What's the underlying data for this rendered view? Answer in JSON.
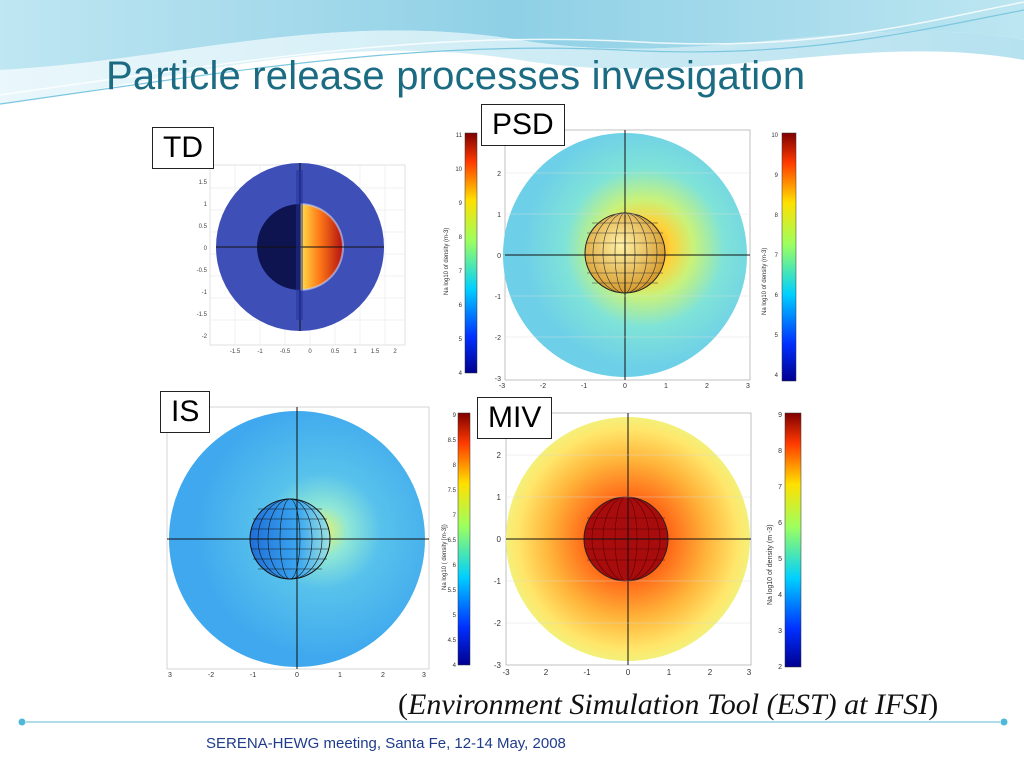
{
  "slide": {
    "title": "Particle release processes invesigation",
    "caption_open": "(",
    "caption_text": "Environment Simulation Tool (EST) at IFSI",
    "caption_close": ")",
    "footer": "SERENA-HEWG meeting, Santa Fe, 12-14 May, 2008"
  },
  "panels": {
    "td": {
      "label": "TD",
      "y_ticks": [
        "1.5",
        "1",
        "0.5",
        "0",
        "-0.5",
        "-1",
        "-1.5",
        "-2"
      ],
      "x_ticks": [
        "-1.5",
        "-1",
        "-0.5",
        "0",
        "0.5",
        "1",
        "1.5",
        "2"
      ]
    },
    "psd": {
      "label": "PSD",
      "left_cbar_ticks": [
        "11",
        "10",
        "9",
        "8",
        "7",
        "6",
        "5",
        "4"
      ],
      "left_cbar_label": "Na log10 of density (m-3)",
      "right_cbar_ticks": [
        "10",
        "9",
        "8",
        "7",
        "6",
        "5",
        "4"
      ],
      "right_cbar_label": "Na log10 of density (m-3)",
      "y_ticks": [
        "3",
        "2",
        "1",
        "0",
        "-1",
        "-2",
        "-3"
      ],
      "x_ticks": [
        "-3",
        "-2",
        "-1",
        "0",
        "1",
        "2",
        "3"
      ]
    },
    "is": {
      "label": "IS",
      "x_ticks": [
        "3",
        "-2",
        "-1",
        "0",
        "1",
        "2",
        "3"
      ]
    },
    "miv": {
      "label": "MIV",
      "left_cbar_ticks": [
        "9",
        "8.5",
        "8",
        "7.5",
        "7",
        "6.5",
        "6",
        "5.5",
        "5",
        "4.5",
        "4"
      ],
      "left_cbar_label": "Na log10 ( density [m-3])",
      "right_cbar_ticks": [
        "9",
        "8",
        "7",
        "6",
        "5",
        "4",
        "3",
        "2"
      ],
      "right_cbar_label": "Na log10 of density (m -3)",
      "y_ticks": [
        "2",
        "1",
        "0",
        "-1",
        "-2",
        "-3"
      ],
      "x_ticks": [
        "-3",
        "2",
        "-1",
        "0",
        "1",
        "2",
        "3"
      ]
    }
  },
  "colors": {
    "title": "#1b6b82",
    "footer": "#1f3c8c",
    "accent": "#4fb8d8"
  }
}
